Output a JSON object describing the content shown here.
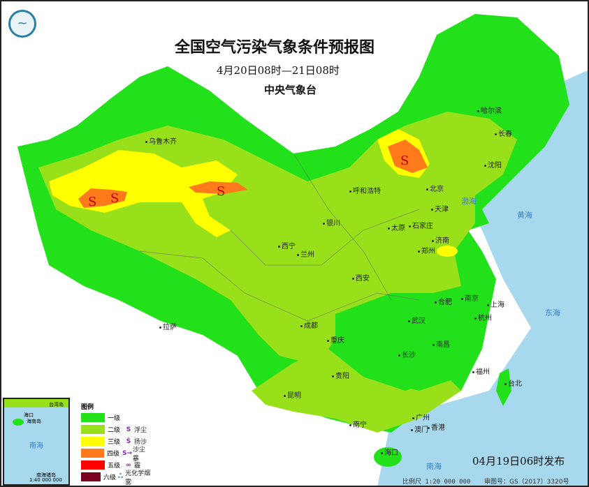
{
  "title": "全国空气污染气象条件预报图",
  "period": "4月20日08时—21日08时",
  "issuer": "中央气象台",
  "publish_time": "04月19日06时发布",
  "scale": "比例尺 1:20 000 000",
  "map_approval": "审图号：GS（2017）3320号",
  "legend": {
    "title": "图例",
    "levels": [
      {
        "label": "一级",
        "color": "#22e01a"
      },
      {
        "label": "二级",
        "color": "#98e01a"
      },
      {
        "label": "三级",
        "color": "#ffff00"
      },
      {
        "label": "四级",
        "color": "#ff7a1a"
      },
      {
        "label": "五级",
        "color": "#ff0000"
      },
      {
        "label": "六级",
        "color": "#7a0020"
      }
    ],
    "symbols": [
      {
        "label": "浮尘",
        "icon": "dust-icon"
      },
      {
        "label": "扬沙",
        "icon": "blowing-sand-icon"
      },
      {
        "label": "沙尘暴",
        "icon": "sandstorm-icon"
      },
      {
        "label": "霾",
        "icon": "haze-icon"
      },
      {
        "label": "光化学烟雾",
        "icon": "photochemical-smog-icon"
      }
    ]
  },
  "cities": [
    "乌鲁木齐",
    "哈尔滨",
    "长春",
    "沈阳",
    "呼和浩特",
    "北京",
    "天津",
    "石家庄",
    "太原",
    "银川",
    "济南",
    "西宁",
    "兰州",
    "郑州",
    "西安",
    "合肥",
    "南京",
    "上海",
    "杭州",
    "拉萨",
    "成都",
    "重庆",
    "武汉",
    "南昌",
    "长沙",
    "贵阳",
    "福州",
    "台北",
    "昆明",
    "南宁",
    "广州",
    "澳门",
    "香港",
    "海口"
  ],
  "seas": [
    "渤海",
    "黄海",
    "东海",
    "南海"
  ],
  "inset": {
    "labels": [
      "海口",
      "海南岛",
      "台湾岛",
      "南海",
      "南海诸岛",
      "1:40 000 000"
    ]
  }
}
